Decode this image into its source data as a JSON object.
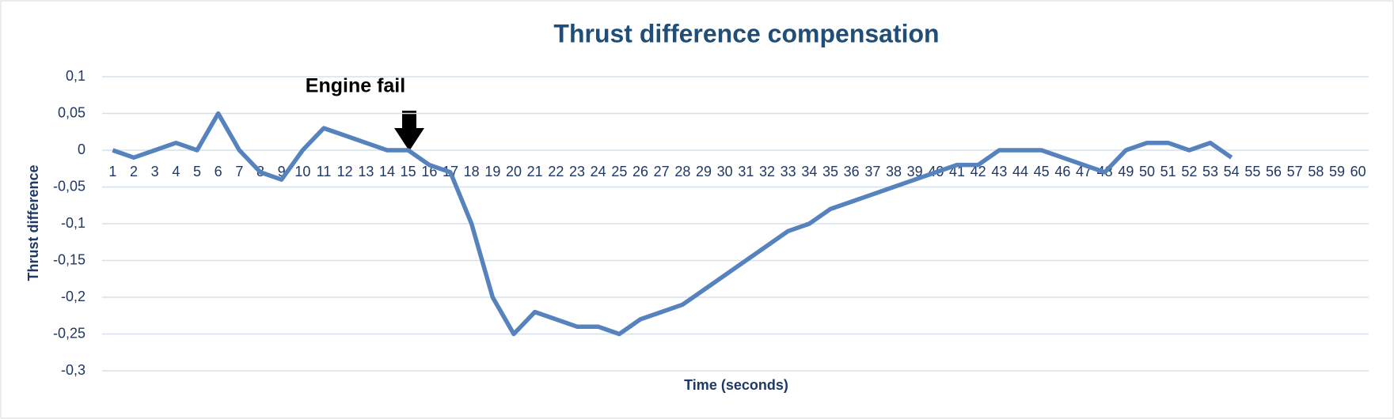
{
  "chart_data": {
    "type": "line",
    "title": "Thrust difference compensation",
    "x_label": "Time (seconds)",
    "y_label": "Thrust difference",
    "annotations": [
      "Engine fail"
    ],
    "categories": [
      "1",
      "2",
      "3",
      "4",
      "5",
      "6",
      "7",
      "8",
      "9",
      "10",
      "11",
      "12",
      "13",
      "14",
      "15",
      "16",
      "17",
      "18",
      "19",
      "20",
      "21",
      "22",
      "23",
      "24",
      "25",
      "26",
      "27",
      "28",
      "29",
      "30",
      "31",
      "32",
      "33",
      "34",
      "35",
      "36",
      "37",
      "38",
      "39",
      "40",
      "41",
      "42",
      "43",
      "44",
      "45",
      "46",
      "47",
      "48",
      "49",
      "50",
      "51",
      "52",
      "53",
      "54",
      "55",
      "56",
      "57",
      "58",
      "59",
      "60"
    ],
    "series": [
      {
        "name": "Thrust difference",
        "color": "#5683bd",
        "values": [
          0,
          -0.01,
          0,
          0.01,
          0,
          0.05,
          0,
          -0.03,
          -0.04,
          0,
          0.03,
          0.02,
          0.01,
          0,
          0,
          -0.02,
          -0.03,
          -0.1,
          -0.2,
          -0.25,
          -0.22,
          -0.23,
          -0.24,
          -0.24,
          -0.25,
          -0.23,
          -0.22,
          -0.21,
          -0.19,
          -0.17,
          -0.15,
          -0.13,
          -0.11,
          -0.1,
          -0.08,
          -0.07,
          -0.06,
          -0.05,
          -0.04,
          -0.03,
          -0.02,
          -0.02,
          0,
          0,
          0,
          -0.01,
          -0.02,
          -0.03,
          0,
          0.01,
          0.01,
          0,
          0.01,
          -0.01,
          null,
          null,
          null,
          null,
          null,
          null
        ]
      }
    ],
    "ylim": [
      -0.3,
      0.1
    ],
    "yticks": [
      {
        "value": 0.1,
        "label": "0,1"
      },
      {
        "value": 0.05,
        "label": "0,05"
      },
      {
        "value": 0,
        "label": "0"
      },
      {
        "value": -0.05,
        "label": "-0,05"
      },
      {
        "value": -0.1,
        "label": "-0,1"
      },
      {
        "value": -0.15,
        "label": "-0,15"
      },
      {
        "value": -0.2,
        "label": "-0,2"
      },
      {
        "value": -0.25,
        "label": "-0,25"
      },
      {
        "value": -0.3,
        "label": "-0,3"
      }
    ],
    "grid": true
  }
}
